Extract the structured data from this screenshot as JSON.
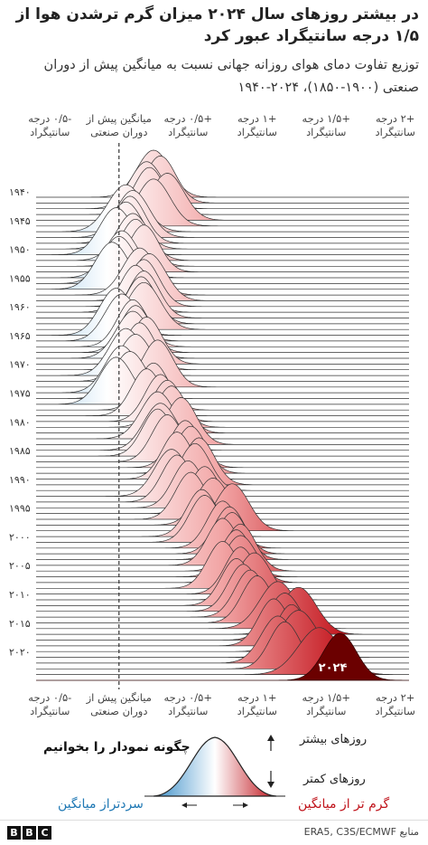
{
  "header": {
    "title": "در بیشتر روزهای سال ۲۰۲۴ میزان گرم ترشدن هوا از ۱/۵ درجه سانتیگراد عبور کرد",
    "subtitle": "توزیع تفاوت دمای هوای روزانه جهانی نسبت به میانگین پیش از دوران صنعتی (۱۹۰۰-۱۸۵۰)، ۲۰۲۴-۱۹۴۰"
  },
  "chart_data": {
    "type": "ridgeline",
    "title": "در بیشتر روزهای سال ۲۰۲۴ میزان گرم ترشدن هوا از ۱/۵ درجه سانتیگراد عبور کرد",
    "subtitle": "توزیع تفاوت دمای هوای روزانه جهانی نسبت به میانگین پیش از دوران صنعتی (۱۹۰۰-۱۸۵۰)، ۲۰۲۴-۱۹۴۰",
    "x_unit": "°C",
    "xlim": [
      -0.6,
      2.1
    ],
    "ticks": [
      {
        "value": -0.5,
        "label": "-۰/۵ درجه سانتیگراد"
      },
      {
        "value": 0,
        "label": "میانگین پیش از دوران صنعتی"
      },
      {
        "value": 0.5,
        "label": "+۰/۵ درجه سانتیگراد"
      },
      {
        "value": 1,
        "label": "+۱ درجه سانتیگراد"
      },
      {
        "value": 1.5,
        "label": "+۱/۵ درجه سانتیگراد"
      },
      {
        "value": 2,
        "label": "+۲ درجه سانتیگراد"
      }
    ],
    "reference_line": 0,
    "year_labels": [
      {
        "year": 1940,
        "label": "۱۹۴۰"
      },
      {
        "year": 1945,
        "label": "۱۹۴۵"
      },
      {
        "year": 1950,
        "label": "۱۹۵۰"
      },
      {
        "year": 1955,
        "label": "۱۹۵۵"
      },
      {
        "year": 1960,
        "label": "۱۹۶۰"
      },
      {
        "year": 1965,
        "label": "۱۹۶۵"
      },
      {
        "year": 1970,
        "label": "۱۹۷۰"
      },
      {
        "year": 1975,
        "label": "۱۹۷۵"
      },
      {
        "year": 1980,
        "label": "۱۹۸۰"
      },
      {
        "year": 1985,
        "label": "۱۹۸۵"
      },
      {
        "year": 1990,
        "label": "۱۹۹۰"
      },
      {
        "year": 1995,
        "label": "۱۹۹۵"
      },
      {
        "year": 2000,
        "label": "۲۰۰۰"
      },
      {
        "year": 2005,
        "label": "۲۰۰۵"
      },
      {
        "year": 2010,
        "label": "۲۰۱۰"
      },
      {
        "year": 2015,
        "label": "۲۰۱۵"
      },
      {
        "year": 2020,
        "label": "۲۰۲۰"
      }
    ],
    "highlight": {
      "year": 2024,
      "label": "۲۰۲۴"
    },
    "series": [
      {
        "year": 1940,
        "mean": 0.25,
        "sd": 0.12
      },
      {
        "year": 1941,
        "mean": 0.3,
        "sd": 0.11
      },
      {
        "year": 1942,
        "mean": 0.2,
        "sd": 0.12
      },
      {
        "year": 1943,
        "mean": 0.22,
        "sd": 0.11
      },
      {
        "year": 1944,
        "mean": 0.35,
        "sd": 0.12
      },
      {
        "year": 1945,
        "mean": 0.25,
        "sd": 0.12
      },
      {
        "year": 1946,
        "mean": 0.05,
        "sd": 0.13
      },
      {
        "year": 1947,
        "mean": 0.1,
        "sd": 0.12
      },
      {
        "year": 1948,
        "mean": 0.08,
        "sd": 0.11
      },
      {
        "year": 1949,
        "mean": 0.05,
        "sd": 0.12
      },
      {
        "year": 1950,
        "mean": -0.02,
        "sd": 0.12
      },
      {
        "year": 1951,
        "mean": 0.1,
        "sd": 0.12
      },
      {
        "year": 1952,
        "mean": 0.12,
        "sd": 0.11
      },
      {
        "year": 1953,
        "mean": 0.18,
        "sd": 0.11
      },
      {
        "year": 1954,
        "mean": 0.02,
        "sd": 0.12
      },
      {
        "year": 1955,
        "mean": 0.0,
        "sd": 0.12
      },
      {
        "year": 1956,
        "mean": -0.05,
        "sd": 0.12
      },
      {
        "year": 1957,
        "mean": 0.15,
        "sd": 0.12
      },
      {
        "year": 1958,
        "mean": 0.22,
        "sd": 0.12
      },
      {
        "year": 1959,
        "mean": 0.18,
        "sd": 0.11
      },
      {
        "year": 1960,
        "mean": 0.12,
        "sd": 0.11
      },
      {
        "year": 1961,
        "mean": 0.18,
        "sd": 0.11
      },
      {
        "year": 1962,
        "mean": 0.16,
        "sd": 0.11
      },
      {
        "year": 1963,
        "mean": 0.18,
        "sd": 0.12
      },
      {
        "year": 1964,
        "mean": -0.02,
        "sd": 0.12
      },
      {
        "year": 1965,
        "mean": 0.02,
        "sd": 0.12
      },
      {
        "year": 1966,
        "mean": 0.1,
        "sd": 0.11
      },
      {
        "year": 1967,
        "mean": 0.12,
        "sd": 0.11
      },
      {
        "year": 1968,
        "mean": 0.1,
        "sd": 0.12
      },
      {
        "year": 1969,
        "mean": 0.2,
        "sd": 0.11
      },
      {
        "year": 1970,
        "mean": 0.15,
        "sd": 0.11
      },
      {
        "year": 1971,
        "mean": 0.05,
        "sd": 0.12
      },
      {
        "year": 1972,
        "mean": 0.12,
        "sd": 0.12
      },
      {
        "year": 1973,
        "mean": 0.28,
        "sd": 0.11
      },
      {
        "year": 1974,
        "mean": 0.02,
        "sd": 0.12
      },
      {
        "year": 1975,
        "mean": 0.08,
        "sd": 0.12
      },
      {
        "year": 1976,
        "mean": -0.02,
        "sd": 0.12
      },
      {
        "year": 1977,
        "mean": 0.25,
        "sd": 0.11
      },
      {
        "year": 1978,
        "mean": 0.2,
        "sd": 0.11
      },
      {
        "year": 1979,
        "mean": 0.3,
        "sd": 0.11
      },
      {
        "year": 1980,
        "mean": 0.35,
        "sd": 0.11
      },
      {
        "year": 1981,
        "mean": 0.38,
        "sd": 0.11
      },
      {
        "year": 1982,
        "mean": 0.28,
        "sd": 0.12
      },
      {
        "year": 1983,
        "mean": 0.45,
        "sd": 0.11
      },
      {
        "year": 1984,
        "mean": 0.3,
        "sd": 0.12
      },
      {
        "year": 1985,
        "mean": 0.28,
        "sd": 0.11
      },
      {
        "year": 1986,
        "mean": 0.35,
        "sd": 0.11
      },
      {
        "year": 1987,
        "mean": 0.48,
        "sd": 0.11
      },
      {
        "year": 1988,
        "mean": 0.52,
        "sd": 0.11
      },
      {
        "year": 1989,
        "mean": 0.42,
        "sd": 0.11
      },
      {
        "year": 1990,
        "mean": 0.58,
        "sd": 0.11
      },
      {
        "year": 1991,
        "mean": 0.55,
        "sd": 0.11
      },
      {
        "year": 1992,
        "mean": 0.38,
        "sd": 0.12
      },
      {
        "year": 1993,
        "mean": 0.42,
        "sd": 0.11
      },
      {
        "year": 1994,
        "mean": 0.5,
        "sd": 0.11
      },
      {
        "year": 1995,
        "mean": 0.62,
        "sd": 0.11
      },
      {
        "year": 1996,
        "mean": 0.52,
        "sd": 0.11
      },
      {
        "year": 1997,
        "mean": 0.68,
        "sd": 0.12
      },
      {
        "year": 1998,
        "mean": 0.82,
        "sd": 0.12
      },
      {
        "year": 1999,
        "mean": 0.6,
        "sd": 0.11
      },
      {
        "year": 2000,
        "mean": 0.62,
        "sd": 0.11
      },
      {
        "year": 2001,
        "mean": 0.75,
        "sd": 0.11
      },
      {
        "year": 2002,
        "mean": 0.8,
        "sd": 0.11
      },
      {
        "year": 2003,
        "mean": 0.82,
        "sd": 0.11
      },
      {
        "year": 2004,
        "mean": 0.75,
        "sd": 0.11
      },
      {
        "year": 2005,
        "mean": 0.88,
        "sd": 0.11
      },
      {
        "year": 2006,
        "mean": 0.85,
        "sd": 0.11
      },
      {
        "year": 2007,
        "mean": 0.88,
        "sd": 0.12
      },
      {
        "year": 2008,
        "mean": 0.75,
        "sd": 0.11
      },
      {
        "year": 2009,
        "mean": 0.88,
        "sd": 0.11
      },
      {
        "year": 2010,
        "mean": 0.98,
        "sd": 0.12
      },
      {
        "year": 2011,
        "mean": 0.85,
        "sd": 0.11
      },
      {
        "year": 2012,
        "mean": 0.9,
        "sd": 0.11
      },
      {
        "year": 2013,
        "mean": 0.95,
        "sd": 0.11
      },
      {
        "year": 2014,
        "mean": 1.0,
        "sd": 0.11
      },
      {
        "year": 2015,
        "mean": 1.15,
        "sd": 0.13
      },
      {
        "year": 2016,
        "mean": 1.3,
        "sd": 0.13
      },
      {
        "year": 2017,
        "mean": 1.2,
        "sd": 0.12
      },
      {
        "year": 2018,
        "mean": 1.12,
        "sd": 0.11
      },
      {
        "year": 2019,
        "mean": 1.25,
        "sd": 0.11
      },
      {
        "year": 2020,
        "mean": 1.3,
        "sd": 0.13
      },
      {
        "year": 2021,
        "mean": 1.15,
        "sd": 0.12
      },
      {
        "year": 2022,
        "mean": 1.2,
        "sd": 0.11
      },
      {
        "year": 2023,
        "mean": 1.45,
        "sd": 0.15
      },
      {
        "year": 2024,
        "mean": 1.6,
        "sd": 0.12
      }
    ],
    "colors": {
      "cool": "#1f78b4",
      "warm": "#c0141c",
      "highlight": "#6b0000",
      "grid": "#999999"
    }
  },
  "legend": {
    "heading": "چگونه نمودار را بخوانیم",
    "more_days": "روزهای بیشتر",
    "fewer_days": "روزهای کمتر",
    "cooler": "سردتراز میانگین",
    "warmer": "گرم تر از میانگین"
  },
  "footer": {
    "brand": [
      "B",
      "B",
      "C"
    ],
    "source": "منابع ERA5, C3S/ECMWF"
  }
}
